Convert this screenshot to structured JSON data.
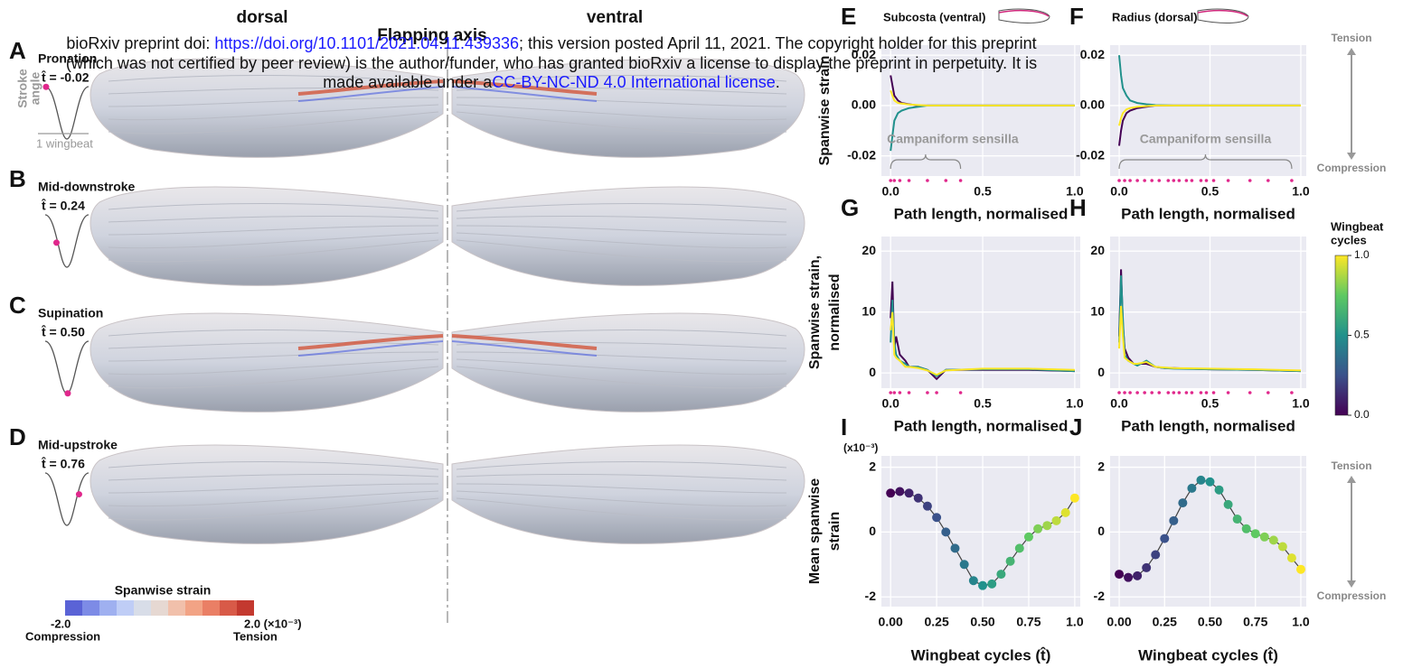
{
  "watermark": {
    "line1_prefix": "bioRxiv preprint doi: ",
    "doi": "https://doi.org/10.1101/2021.04.11.439336",
    "line1_suffix": "; this version posted April 11, 2021. The copyright holder for this preprint",
    "line2": "(which was not certified by peer review) is the author/funder, who has granted bioRxiv a license to display the preprint in perpetuity. It is",
    "line3_prefix": "made available under a",
    "license": "CC-BY-NC-ND 4.0 International license",
    "line3_suffix": "."
  },
  "wings": {
    "dorsal": "dorsal",
    "axis": "Flapping axis",
    "ventral": "ventral",
    "stroke_angle": [
      "Stroke",
      "angle"
    ],
    "wingbeat": "1 wingbeat",
    "panels": [
      {
        "letter": "A",
        "phase": "Pronation",
        "time": "t̂ = -0.02"
      },
      {
        "letter": "B",
        "phase": "Mid-downstroke",
        "time": "t̂ = 0.24"
      },
      {
        "letter": "C",
        "phase": "Supination",
        "time": "t̂ = 0.50"
      },
      {
        "letter": "D",
        "phase": "Mid-upstroke",
        "time": "t̂ = 0.76"
      }
    ],
    "colorbar": {
      "title": "Spanwise strain",
      "min": "-2.0",
      "min_label": "Compression",
      "max": "2.0 (×10⁻³)",
      "max_label": "Tension"
    }
  },
  "side_labels": [
    {
      "top": "Tension",
      "bottom": "Compression"
    },
    {
      "top": "Tension",
      "bottom": "Compression"
    }
  ],
  "wingbeat_colorbar": {
    "title": [
      "Wingbeat",
      "cycles"
    ],
    "range": [
      0,
      1
    ],
    "colormap": "viridis",
    "ticks": [
      {
        "value": 0,
        "label": "0.0"
      },
      {
        "value": 0.5,
        "label": "0.5"
      },
      {
        "value": 1,
        "label": "1.0"
      }
    ]
  },
  "chart_data": [
    {
      "type": "line",
      "letter": "E",
      "title": "Subcosta (ventral)",
      "xlabel": "Path length, normalised",
      "ylabel": "Spanwise strain",
      "annotation": "Campaniform sensilla",
      "grid": true,
      "xlim": [
        -0.05,
        1.03
      ],
      "ylim": [
        -0.028,
        0.024
      ],
      "xticks": [
        {
          "value": 0,
          "label": "0.0"
        },
        {
          "value": 0.5,
          "label": "0.5"
        },
        {
          "value": 1,
          "label": "1.0"
        }
      ],
      "yticks": [
        {
          "value": -0.02,
          "label": "-0.02"
        },
        {
          "value": 0,
          "label": "0.00"
        },
        {
          "value": 0.02,
          "label": "0.02"
        }
      ],
      "x": [
        0,
        0.01,
        0.02,
        0.04,
        0.06,
        0.1,
        0.15,
        0.2,
        0.3,
        0.4,
        0.6,
        0.8,
        1.0
      ],
      "series": [
        {
          "color": "#440154",
          "values": [
            0.012,
            0.008,
            0.004,
            0.002,
            0.001,
            0.0005,
            0,
            0,
            0,
            0,
            0,
            0,
            0
          ]
        },
        {
          "color": "#21918c",
          "values": [
            -0.018,
            -0.012,
            -0.006,
            -0.003,
            -0.002,
            -0.001,
            -0.0005,
            0,
            0,
            0,
            0,
            0,
            0
          ]
        },
        {
          "color": "#fde725",
          "values": [
            0.006,
            0.004,
            0.002,
            0.001,
            0.0008,
            0.0004,
            0.0002,
            0,
            0,
            0,
            0,
            0,
            0
          ]
        }
      ],
      "sensilla": [
        0,
        0.02,
        0.05,
        0.1,
        0.2,
        0.3,
        0.38
      ]
    },
    {
      "type": "line",
      "letter": "F",
      "title": "Radius (dorsal)",
      "xlabel": "Path length, normalised",
      "annotation": "Campaniform sensilla",
      "grid": true,
      "xlim": [
        -0.05,
        1.03
      ],
      "ylim": [
        -0.028,
        0.024
      ],
      "xticks": [
        {
          "value": 0,
          "label": "0.0"
        },
        {
          "value": 0.5,
          "label": "0.5"
        },
        {
          "value": 1,
          "label": "1.0"
        }
      ],
      "yticks": [
        {
          "value": -0.02,
          "label": "-0.02"
        },
        {
          "value": 0,
          "label": "0.00"
        },
        {
          "value": 0.02,
          "label": "0.02"
        }
      ],
      "x": [
        0,
        0.01,
        0.02,
        0.04,
        0.06,
        0.1,
        0.15,
        0.2,
        0.3,
        0.4,
        0.6,
        0.8,
        1.0
      ],
      "series": [
        {
          "color": "#440154",
          "values": [
            -0.016,
            -0.01,
            -0.006,
            -0.003,
            -0.002,
            -0.001,
            -0.0005,
            0,
            0,
            0,
            0,
            0,
            0
          ]
        },
        {
          "color": "#21918c",
          "values": [
            0.02,
            0.012,
            0.007,
            0.004,
            0.002,
            0.001,
            0.0005,
            0.0002,
            0,
            0,
            0,
            0,
            0
          ]
        },
        {
          "color": "#fde725",
          "values": [
            -0.008,
            -0.005,
            -0.003,
            -0.0015,
            -0.001,
            -0.0005,
            -0.0002,
            0,
            0,
            0,
            0,
            0,
            0
          ]
        }
      ],
      "sensilla": [
        0,
        0.03,
        0.06,
        0.1,
        0.14,
        0.18,
        0.22,
        0.27,
        0.3,
        0.33,
        0.37,
        0.4,
        0.45,
        0.48,
        0.52,
        0.6,
        0.72,
        0.82,
        0.95
      ]
    },
    {
      "type": "line",
      "letter": "G",
      "xlabel": "Path length, normalised",
      "ylabel": [
        "Spanwise strain,",
        "normalised"
      ],
      "grid": true,
      "xlim": [
        -0.05,
        1.03
      ],
      "ylim": [
        -2.5,
        22.4
      ],
      "xticks": [
        {
          "value": 0,
          "label": "0.0"
        },
        {
          "value": 0.5,
          "label": "0.5"
        },
        {
          "value": 1,
          "label": "1.0"
        }
      ],
      "yticks": [
        0,
        10,
        20
      ],
      "x": [
        0,
        0.01,
        0.02,
        0.03,
        0.05,
        0.08,
        0.1,
        0.15,
        0.2,
        0.25,
        0.3,
        0.5,
        0.75,
        1.0
      ],
      "series": [
        {
          "color": "#440154",
          "values": [
            9,
            15,
            4,
            6,
            3,
            2,
            1,
            1,
            0.5,
            -1,
            0.5,
            0.5,
            0.5,
            0.3
          ]
        },
        {
          "color": "#21918c",
          "values": [
            5,
            12,
            5,
            3,
            2,
            1.5,
            1,
            1,
            0.5,
            -0.5,
            0.5,
            0.6,
            0.6,
            0.3
          ]
        },
        {
          "color": "#fde725",
          "values": [
            7,
            10,
            3,
            2.5,
            2,
            1,
            1,
            0.8,
            0.4,
            -0.3,
            0.4,
            0.7,
            0.7,
            0.5
          ]
        }
      ],
      "sensilla": [
        0,
        0.02,
        0.05,
        0.1,
        0.2,
        0.25,
        0.38
      ]
    },
    {
      "type": "line",
      "letter": "H",
      "xlabel": "Path length, normalised",
      "grid": true,
      "xlim": [
        -0.05,
        1.03
      ],
      "ylim": [
        -2.5,
        22.4
      ],
      "xticks": [
        {
          "value": 0,
          "label": "0.0"
        },
        {
          "value": 0.5,
          "label": "0.5"
        },
        {
          "value": 1,
          "label": "1.0"
        }
      ],
      "yticks": [
        0,
        10,
        20
      ],
      "x": [
        0,
        0.01,
        0.02,
        0.03,
        0.05,
        0.08,
        0.1,
        0.15,
        0.2,
        0.25,
        0.3,
        0.5,
        0.75,
        1.0
      ],
      "series": [
        {
          "color": "#440154",
          "values": [
            6,
            17,
            8,
            4,
            2.5,
            1.5,
            1.5,
            1.5,
            1,
            0.8,
            0.8,
            0.6,
            0.5,
            0.3
          ]
        },
        {
          "color": "#21918c",
          "values": [
            5,
            16,
            9,
            3,
            2,
            1.5,
            1.2,
            2,
            1,
            0.8,
            0.7,
            0.6,
            0.5,
            0.3
          ]
        },
        {
          "color": "#fde725",
          "values": [
            4,
            11,
            6,
            2.5,
            2,
            1.5,
            1.5,
            1.8,
            1,
            0.9,
            0.8,
            0.7,
            0.6,
            0.4
          ]
        }
      ],
      "sensilla": [
        0,
        0.03,
        0.06,
        0.1,
        0.14,
        0.18,
        0.22,
        0.27,
        0.3,
        0.33,
        0.37,
        0.4,
        0.45,
        0.48,
        0.52,
        0.6,
        0.72,
        0.82,
        0.95
      ]
    },
    {
      "type": "line",
      "letter": "I",
      "xlabel": "Wingbeat cycles (t̂)",
      "ylabel": [
        "Mean spanwise",
        "strain"
      ],
      "unit": "(x10⁻³)",
      "grid": true,
      "colormap": "viridis",
      "xlim": [
        -0.05,
        1.03
      ],
      "ylim": [
        -2.3,
        2.35
      ],
      "xticks": [
        {
          "value": 0,
          "label": "0.00"
        },
        {
          "value": 0.25,
          "label": "0.25"
        },
        {
          "value": 0.5,
          "label": "0.50"
        },
        {
          "value": 0.75,
          "label": "0.75"
        },
        {
          "value": 1,
          "label": "1.0"
        }
      ],
      "yticks": [
        -2,
        0,
        2
      ],
      "x": [
        0,
        0.05,
        0.1,
        0.15,
        0.2,
        0.25,
        0.3,
        0.35,
        0.4,
        0.45,
        0.5,
        0.55,
        0.6,
        0.65,
        0.7,
        0.75,
        0.8,
        0.85,
        0.9,
        0.95,
        1.0
      ],
      "series": [
        {
          "color": "#444444",
          "values": [
            1.2,
            1.25,
            1.2,
            1.05,
            0.8,
            0.45,
            0.0,
            -0.5,
            -1.0,
            -1.5,
            -1.65,
            -1.6,
            -1.3,
            -0.9,
            -0.5,
            -0.15,
            0.1,
            0.2,
            0.35,
            0.6,
            1.05
          ]
        }
      ]
    },
    {
      "type": "line",
      "letter": "J",
      "xlabel": "Wingbeat cycles (t̂)",
      "grid": true,
      "colormap": "viridis",
      "xlim": [
        -0.05,
        1.03
      ],
      "ylim": [
        -2.3,
        2.35
      ],
      "xticks": [
        {
          "value": 0,
          "label": "0.00"
        },
        {
          "value": 0.25,
          "label": "0.25"
        },
        {
          "value": 0.5,
          "label": "0.50"
        },
        {
          "value": 0.75,
          "label": "0.75"
        },
        {
          "value": 1,
          "label": "1.0"
        }
      ],
      "yticks": [
        -2,
        0,
        2
      ],
      "x": [
        0,
        0.05,
        0.1,
        0.15,
        0.2,
        0.25,
        0.3,
        0.35,
        0.4,
        0.45,
        0.5,
        0.55,
        0.6,
        0.65,
        0.7,
        0.75,
        0.8,
        0.85,
        0.9,
        0.95,
        1.0
      ],
      "series": [
        {
          "color": "#444444",
          "values": [
            -1.3,
            -1.4,
            -1.35,
            -1.1,
            -0.7,
            -0.2,
            0.35,
            0.9,
            1.35,
            1.6,
            1.55,
            1.3,
            0.85,
            0.4,
            0.1,
            -0.05,
            -0.15,
            -0.25,
            -0.45,
            -0.8,
            -1.15
          ]
        }
      ]
    }
  ]
}
